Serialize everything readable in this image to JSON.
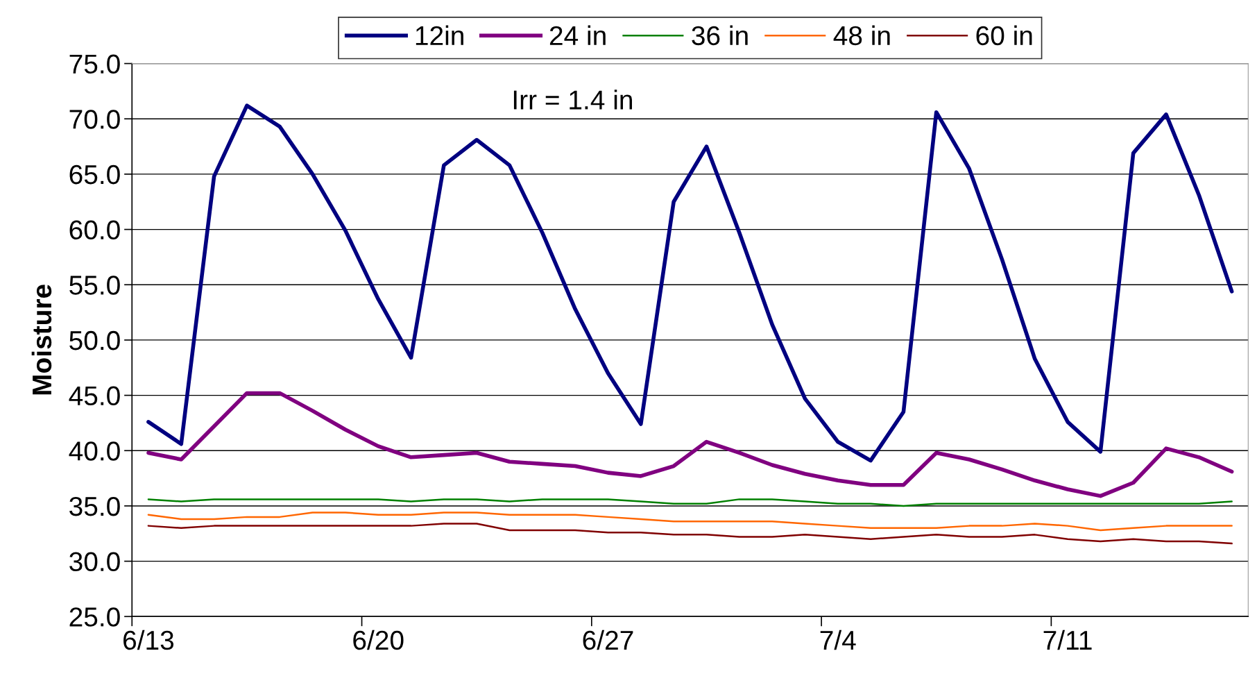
{
  "chart_data": {
    "type": "line",
    "ylabel": "Moisture",
    "categories": [
      "6/13",
      null,
      null,
      null,
      null,
      null,
      null,
      "6/20",
      null,
      null,
      null,
      null,
      null,
      null,
      "6/27",
      null,
      null,
      null,
      null,
      null,
      null,
      "7/4",
      null,
      null,
      null,
      null,
      null,
      null,
      "7/11",
      null,
      null,
      null,
      null,
      null
    ],
    "series": [
      {
        "name": "12in",
        "color": "#000080",
        "values": [
          42.6,
          40.6,
          64.8,
          71.2,
          69.3,
          65.0,
          59.9,
          53.7,
          48.4,
          65.8,
          68.1,
          65.8,
          59.7,
          52.8,
          47.0,
          42.4,
          62.5,
          67.5,
          59.7,
          51.4,
          44.7,
          40.8,
          39.1,
          43.5,
          70.6,
          65.5,
          57.3,
          48.3,
          42.6,
          39.9,
          66.9,
          70.4,
          63.1,
          54.4
        ]
      },
      {
        "name": "24 in",
        "color": "#800080",
        "values": [
          39.8,
          39.2,
          42.2,
          45.2,
          45.2,
          43.6,
          41.9,
          40.4,
          39.4,
          39.6,
          39.8,
          39.0,
          38.8,
          38.6,
          38.0,
          37.7,
          38.6,
          40.8,
          39.8,
          38.7,
          37.9,
          37.3,
          36.9,
          36.9,
          39.8,
          39.2,
          38.3,
          37.3,
          36.5,
          35.9,
          37.1,
          40.2,
          39.4,
          38.1
        ]
      },
      {
        "name": "36 in",
        "color": "#008000",
        "values": [
          35.6,
          35.4,
          35.6,
          35.6,
          35.6,
          35.6,
          35.6,
          35.6,
          35.4,
          35.6,
          35.6,
          35.4,
          35.6,
          35.6,
          35.6,
          35.4,
          35.2,
          35.2,
          35.6,
          35.6,
          35.4,
          35.2,
          35.2,
          35.0,
          35.2,
          35.2,
          35.2,
          35.2,
          35.2,
          35.2,
          35.2,
          35.2,
          35.2,
          35.4
        ]
      },
      {
        "name": "48 in",
        "color": "#ff6600",
        "values": [
          34.2,
          33.8,
          33.8,
          34.0,
          34.0,
          34.4,
          34.4,
          34.2,
          34.2,
          34.4,
          34.4,
          34.2,
          34.2,
          34.2,
          34.0,
          33.8,
          33.6,
          33.6,
          33.6,
          33.6,
          33.4,
          33.2,
          33.0,
          33.0,
          33.0,
          33.2,
          33.2,
          33.4,
          33.2,
          32.8,
          33.0,
          33.2,
          33.2,
          33.2
        ]
      },
      {
        "name": "60 in",
        "color": "#800000",
        "values": [
          33.2,
          33.0,
          33.2,
          33.2,
          33.2,
          33.2,
          33.2,
          33.2,
          33.2,
          33.4,
          33.4,
          32.8,
          32.8,
          32.8,
          32.6,
          32.6,
          32.4,
          32.4,
          32.2,
          32.2,
          32.4,
          32.2,
          32.0,
          32.2,
          32.4,
          32.2,
          32.2,
          32.4,
          32.0,
          31.8,
          32.0,
          31.8,
          31.8,
          31.6
        ]
      }
    ],
    "ylim": [
      25,
      75
    ],
    "yticks": [
      {
        "value": 25,
        "label": "25.0"
      },
      {
        "value": 30,
        "label": "30.0"
      },
      {
        "value": 35,
        "label": "35.0"
      },
      {
        "value": 40,
        "label": "40.0"
      },
      {
        "value": 45,
        "label": "45.0"
      },
      {
        "value": 50,
        "label": "50.0"
      },
      {
        "value": 55,
        "label": "55.0"
      },
      {
        "value": 60,
        "label": "60.0"
      },
      {
        "value": 65,
        "label": "65.0"
      },
      {
        "value": 70,
        "label": "70.0"
      },
      {
        "value": 75,
        "label": "75.0"
      }
    ],
    "annotations": [
      "Irr = 1.4 in"
    ],
    "grid": "y",
    "legend": "top",
    "marker": "none",
    "line_style": "solid"
  }
}
